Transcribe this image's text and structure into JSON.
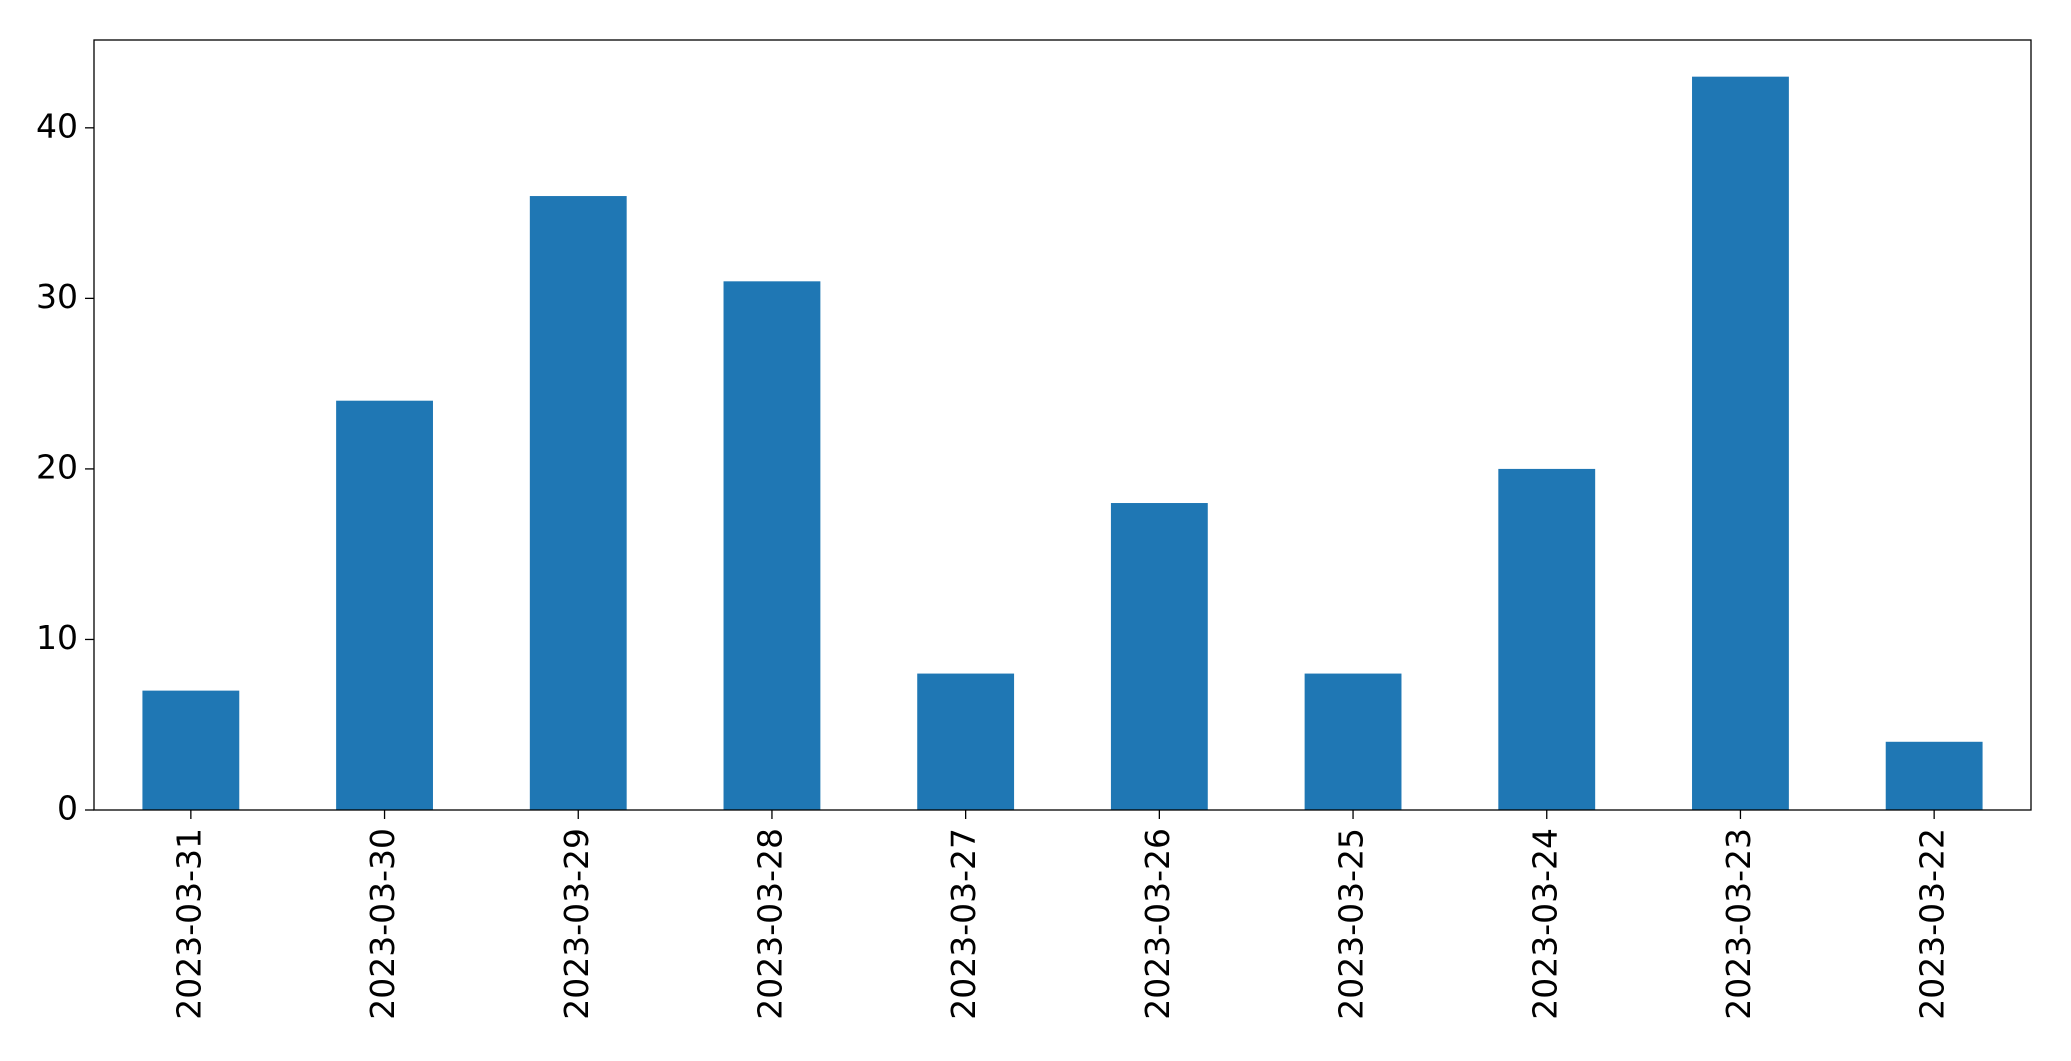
{
  "chart_data": {
    "type": "bar",
    "categories": [
      "2023-03-31",
      "2023-03-30",
      "2023-03-29",
      "2023-03-28",
      "2023-03-27",
      "2023-03-26",
      "2023-03-25",
      "2023-03-24",
      "2023-03-23",
      "2023-03-22"
    ],
    "values": [
      7,
      24,
      36,
      31,
      8,
      18,
      8,
      20,
      43,
      4
    ],
    "color": "#1f77b4",
    "ylim": [
      0,
      45.15
    ],
    "yticks": [
      0,
      10,
      20,
      30,
      40
    ],
    "grid": false
  }
}
